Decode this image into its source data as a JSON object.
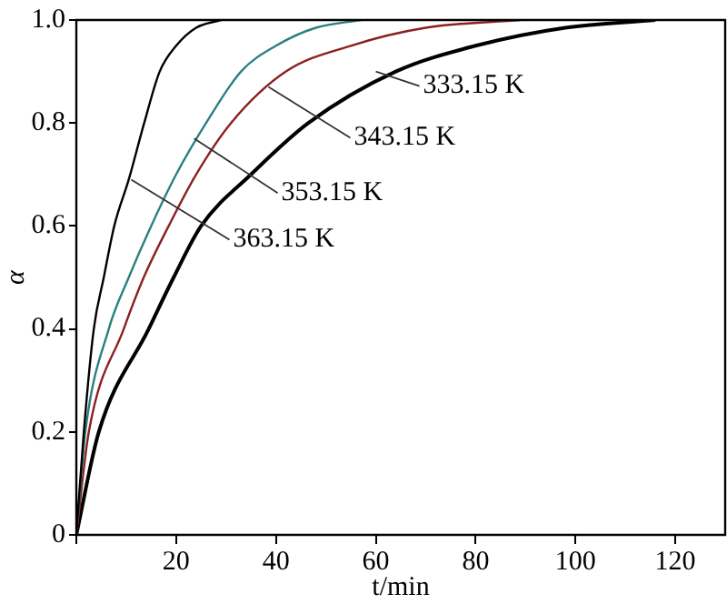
{
  "chart_data": {
    "type": "line",
    "xlabel": "t/min",
    "ylabel": "α",
    "xlim": [
      0,
      130
    ],
    "ylim": [
      0,
      1
    ],
    "xticks": [
      {
        "value": 0,
        "label": null
      },
      20,
      40,
      60,
      80,
      100,
      120
    ],
    "yticks": [
      0,
      0.2,
      0.4,
      0.6,
      0.8,
      {
        "value": 1,
        "label": "1.0"
      }
    ],
    "grid": false,
    "legend": false,
    "marker": "none",
    "line_style": "solid",
    "series": [
      {
        "color": "#000000",
        "x": [
          0,
          1.5,
          3.5,
          5.5,
          7.6,
          10.5,
          13.6,
          16.7,
          20,
          24,
          29
        ],
        "values": [
          0,
          0.2,
          0.4,
          0.5,
          0.6,
          0.69,
          0.8,
          0.9,
          0.95,
          0.985,
          1
        ]
      },
      {
        "color": "#2a8080",
        "x": [
          0,
          1.8,
          6.5,
          10.5,
          15,
          20,
          26,
          33,
          40,
          48,
          57
        ],
        "values": [
          0,
          0.2,
          0.4,
          0.5,
          0.6,
          0.7,
          0.8,
          0.9,
          0.95,
          0.985,
          1
        ]
      },
      {
        "color": "#8b2020",
        "x": [
          0,
          2.5,
          9.5,
          13.5,
          18.5,
          24,
          31,
          42,
          55,
          70,
          89
        ],
        "values": [
          0,
          0.2,
          0.4,
          0.5,
          0.6,
          0.7,
          0.8,
          0.9,
          0.95,
          0.985,
          1
        ]
      },
      {
        "color": "#000000",
        "x": [
          0,
          4.5,
          14.5,
          19.5,
          25,
          35,
          46.5,
          64,
          80,
          98,
          116
        ],
        "values": [
          0,
          0.2,
          0.4,
          0.5,
          0.6,
          0.7,
          0.8,
          0.9,
          0.95,
          0.985,
          1
        ]
      }
    ],
    "annotations": [
      {
        "text": "333.15 K",
        "x": 60,
        "y": 0.9
      },
      {
        "text": "343.15 K",
        "x": 38.5,
        "y": 0.87
      },
      {
        "text": "353.15 K",
        "x": 23.6,
        "y": 0.77
      },
      {
        "text": "363.15 K",
        "x": 11,
        "y": 0.69
      }
    ]
  }
}
